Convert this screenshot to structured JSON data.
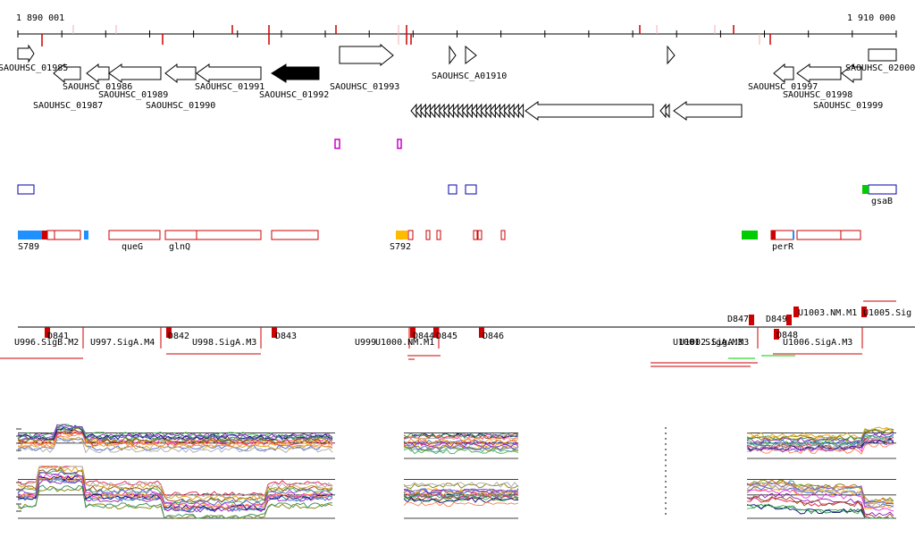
{
  "ruler": {
    "start_label": "1 890 001",
    "end_label": "1 910 000"
  },
  "genes": {
    "g01985": "SAOUHSC_01985",
    "g01986": "SAOUHSC_01986",
    "g01987": "SAOUHSC_01987",
    "g01988": "SAOUHSC_01988",
    "g01989": "SAOUHSC_01989",
    "g01990": "SAOUHSC_01990",
    "g01991": "SAOUHSC_01991",
    "g01992": "SAOUHSC_01992",
    "g01993": "SAOUHSC_01993",
    "gA01910": "SAOUHSC_A01910",
    "g01997": "SAOUHSC_01997",
    "g01998": "SAOUHSC_01998",
    "g01999": "SAOUHSC_01999",
    "g02000": "SAOUHSC_02000"
  },
  "features": {
    "gsaB": "gsaB",
    "S789": "S789",
    "queG": "queG",
    "glnQ": "glnQ",
    "S792": "S792",
    "perR": "perR"
  },
  "promoters": {
    "U996": "U996.SigB.M2",
    "D841": "D841",
    "U997": "U997.SigA.M4",
    "D842": "D842",
    "U998": "U998.SigA.M3",
    "D843": "D843",
    "U999": "U999",
    "U1000": "U1000.NM.M1",
    "D844": "D844",
    "D845": "D845",
    "D846": "D846",
    "U1001": "U1001.SigA.M3",
    "U1002": "U1002.SigA.M3",
    "D847": "D847",
    "D849": "D849",
    "D848": "D848",
    "U1003": "U1003.NM.M1",
    "U1005": "U1005.Sig",
    "U1006": "U1006.SigA.M3"
  },
  "colors": {
    "marker": "#cc0000",
    "feature_outline": "#cc0000",
    "cds_blue": "#1e90ff",
    "cds_orange": "#ffbb00",
    "cds_green": "#00cc00",
    "sRNA": "#cc00cc",
    "blue_box": "#0000aa"
  }
}
